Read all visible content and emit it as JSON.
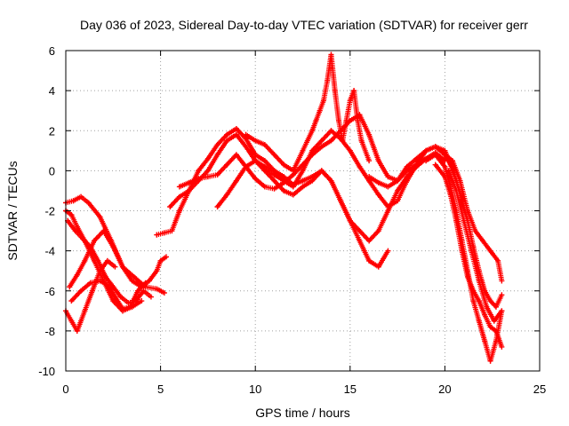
{
  "chart_data": {
    "type": "scatter",
    "title": "Day 036 of 2023, Sidereal Day-to-day VTEC variation (SDTVAR) for receiver gerr",
    "xlabel": "GPS time / hours",
    "ylabel": "SDTVAR / TECUs",
    "xlim": [
      0,
      25
    ],
    "ylim": [
      -10,
      6
    ],
    "xticks": [
      0,
      5,
      10,
      15,
      20,
      25
    ],
    "yticks": [
      -10,
      -8,
      -6,
      -4,
      -2,
      0,
      2,
      4,
      6
    ],
    "grid": true,
    "marker": "+",
    "color": "#ff0000",
    "series": [
      {
        "x": [
          0.0,
          0.3,
          0.6,
          1.0,
          1.5,
          2.0,
          2.5,
          3.0,
          3.5,
          4.0
        ],
        "y": [
          -2.0,
          -2.2,
          -2.8,
          -3.5,
          -4.5,
          -5.5,
          -6.5,
          -7.0,
          -6.8,
          -6.5
        ]
      },
      {
        "x": [
          0.0,
          0.4,
          0.8,
          1.2,
          1.8,
          2.4,
          3.0,
          3.6,
          4.2,
          4.8,
          5.2
        ],
        "y": [
          -1.6,
          -1.5,
          -1.3,
          -1.6,
          -2.3,
          -3.5,
          -4.8,
          -5.3,
          -5.8,
          -5.9,
          -6.1
        ]
      },
      {
        "x": [
          0.0,
          0.3,
          0.6,
          1.0,
          1.4,
          1.8,
          2.2,
          2.6
        ],
        "y": [
          -7.0,
          -7.5,
          -8.0,
          -7.0,
          -6.0,
          -5.0,
          -4.5,
          -4.8
        ]
      },
      {
        "x": [
          0.2,
          0.6,
          1.0,
          1.5,
          2.0,
          2.5,
          3.0,
          3.5,
          4.0,
          4.4,
          4.8,
          5.0,
          5.3
        ],
        "y": [
          -5.8,
          -5.2,
          -4.5,
          -3.5,
          -3.0,
          -3.8,
          -4.8,
          -5.5,
          -5.8,
          -5.5,
          -5.0,
          -4.5,
          -4.3
        ]
      },
      {
        "x": [
          0.1,
          0.5,
          0.9,
          1.3,
          1.7,
          2.1,
          2.5,
          2.9,
          3.3,
          3.7,
          4.1,
          4.5
        ],
        "y": [
          -2.5,
          -3.0,
          -3.4,
          -3.8,
          -4.5,
          -5.3,
          -5.8,
          -6.3,
          -6.6,
          -6.5,
          -6.0,
          -6.3
        ]
      },
      {
        "x": [
          0.3,
          0.8,
          1.3,
          1.8,
          2.2,
          2.6,
          3.0,
          3.4,
          3.8,
          4.2
        ],
        "y": [
          -6.5,
          -6.0,
          -5.6,
          -5.5,
          -5.7,
          -6.3,
          -6.9,
          -6.8,
          -6.0,
          -5.6
        ]
      },
      {
        "x": [
          4.8,
          5.2,
          5.6,
          6.0,
          6.5,
          7.0,
          7.5,
          8.0,
          8.5,
          9.0,
          9.5,
          10.0,
          10.5,
          11.0,
          11.5,
          12.0,
          12.5,
          13.0,
          13.5,
          14.0,
          14.5,
          15.0,
          15.5,
          16.0,
          16.5,
          17.0,
          17.5,
          18.0,
          18.5,
          19.0,
          19.5,
          20.0
        ],
        "y": [
          -3.2,
          -3.1,
          -3.0,
          -2.0,
          -1.0,
          0.0,
          0.6,
          1.3,
          1.8,
          2.1,
          1.6,
          0.8,
          0.5,
          0.0,
          -0.3,
          -0.7,
          -0.5,
          -0.3,
          0.0,
          -0.5,
          -1.5,
          -2.5,
          -3.0,
          -3.5,
          -3.0,
          -2.0,
          -1.0,
          -0.3,
          0.2,
          0.6,
          0.9,
          0.5
        ]
      },
      {
        "x": [
          5.5,
          6.0,
          6.5,
          7.0,
          7.5,
          8.0,
          8.5,
          9.0,
          9.5,
          10.0,
          10.5,
          11.0,
          11.5,
          12.0,
          12.5,
          13.0,
          13.5,
          14.0,
          14.5,
          15.0,
          15.5,
          16.0,
          16.5,
          17.0,
          17.5,
          18.0,
          18.5,
          19.0,
          19.5,
          20.0,
          20.5
        ],
        "y": [
          -1.8,
          -1.3,
          -1.0,
          -0.5,
          0.0,
          0.8,
          1.5,
          1.8,
          1.2,
          0.5,
          0.2,
          -0.2,
          -0.5,
          -0.8,
          0.0,
          1.0,
          1.5,
          2.0,
          1.6,
          1.0,
          0.2,
          -0.5,
          -1.2,
          -1.8,
          -1.5,
          -0.5,
          0.3,
          1.0,
          1.2,
          0.8,
          0.0
        ]
      },
      {
        "x": [
          6.0,
          6.5,
          7.0,
          7.5,
          8.0,
          8.5,
          9.0,
          9.5,
          10.0,
          10.5,
          11.0,
          11.5,
          12.0,
          12.5,
          13.0,
          13.5,
          14.0,
          14.5,
          15.0,
          15.5,
          16.0,
          16.5,
          17.0,
          17.5,
          18.0,
          18.5,
          19.0,
          19.5,
          20.0
        ],
        "y": [
          -0.8,
          -0.6,
          -0.4,
          -0.3,
          -0.2,
          0.3,
          0.8,
          0.2,
          -0.4,
          -0.8,
          -0.9,
          -0.6,
          -0.2,
          0.3,
          0.8,
          1.2,
          1.5,
          2.0,
          2.5,
          2.8,
          1.8,
          0.5,
          -0.3,
          -0.5,
          0.0,
          0.3,
          0.6,
          0.8,
          0.5
        ]
      },
      {
        "x": [
          8.0,
          8.5,
          9.0,
          9.5,
          10.0,
          10.5,
          11.0,
          11.5,
          12.0,
          12.5,
          13.0,
          13.5,
          14.0,
          14.5,
          15.0,
          15.5,
          16.0,
          16.5,
          17.0
        ],
        "y": [
          -1.8,
          -1.2,
          -0.5,
          0.2,
          0.5,
          0.0,
          -0.5,
          -1.0,
          -1.2,
          -0.8,
          -0.5,
          0.0,
          -0.5,
          -1.5,
          -2.5,
          -3.5,
          -4.5,
          -4.8,
          -4.0
        ]
      },
      {
        "x": [
          9.5,
          10.0,
          10.5,
          11.0,
          11.5,
          12.0,
          12.5,
          13.0,
          13.2,
          13.4,
          13.6,
          13.8,
          14.0,
          14.2,
          14.4,
          14.6,
          14.8,
          15.0,
          15.2,
          15.4,
          15.6,
          16.0
        ],
        "y": [
          1.8,
          1.5,
          1.3,
          0.8,
          0.3,
          0.0,
          1.0,
          2.0,
          2.5,
          3.0,
          3.5,
          4.5,
          5.8,
          4.0,
          2.5,
          1.5,
          2.5,
          3.5,
          4.0,
          2.5,
          1.5,
          0.5
        ]
      },
      {
        "x": [
          16.0,
          16.5,
          17.0,
          17.5,
          18.0,
          18.5,
          19.0,
          19.5,
          20.0,
          20.3,
          20.6,
          20.9,
          21.2,
          21.5,
          21.8,
          22.1,
          22.4,
          22.7,
          23.0
        ],
        "y": [
          -0.3,
          -0.6,
          -0.8,
          -0.5,
          0.2,
          0.6,
          1.0,
          1.2,
          1.0,
          0.3,
          -0.5,
          -1.5,
          -2.5,
          -3.8,
          -5.0,
          -6.0,
          -6.5,
          -6.8,
          -6.2
        ]
      },
      {
        "x": [
          19.0,
          19.5,
          20.0,
          20.3,
          20.6,
          20.9,
          21.2,
          21.5,
          21.8,
          22.1,
          22.4,
          22.7,
          23.0
        ],
        "y": [
          0.5,
          0.8,
          0.2,
          -0.8,
          -2.0,
          -3.5,
          -5.0,
          -6.5,
          -7.5,
          -8.5,
          -9.5,
          -8.5,
          -7.0
        ]
      },
      {
        "x": [
          19.5,
          20.0,
          20.3,
          20.6,
          20.9,
          21.2,
          21.5,
          21.8,
          22.1,
          22.4,
          22.7,
          23.0
        ],
        "y": [
          0.3,
          -0.3,
          -1.2,
          -2.5,
          -4.0,
          -5.3,
          -6.0,
          -6.5,
          -7.2,
          -7.8,
          -8.0,
          -8.8
        ]
      },
      {
        "x": [
          20.0,
          20.4,
          20.8,
          21.2,
          21.6,
          22.0,
          22.4,
          22.8,
          23.0
        ],
        "y": [
          0.8,
          0.5,
          -0.5,
          -2.0,
          -3.0,
          -3.5,
          -4.0,
          -4.5,
          -5.5
        ]
      },
      {
        "x": [
          20.2,
          20.6,
          21.0,
          21.4,
          21.8,
          22.2,
          22.6,
          23.0
        ],
        "y": [
          0.0,
          -1.0,
          -2.5,
          -4.0,
          -5.5,
          -6.8,
          -7.5,
          -7.0
        ]
      }
    ]
  }
}
